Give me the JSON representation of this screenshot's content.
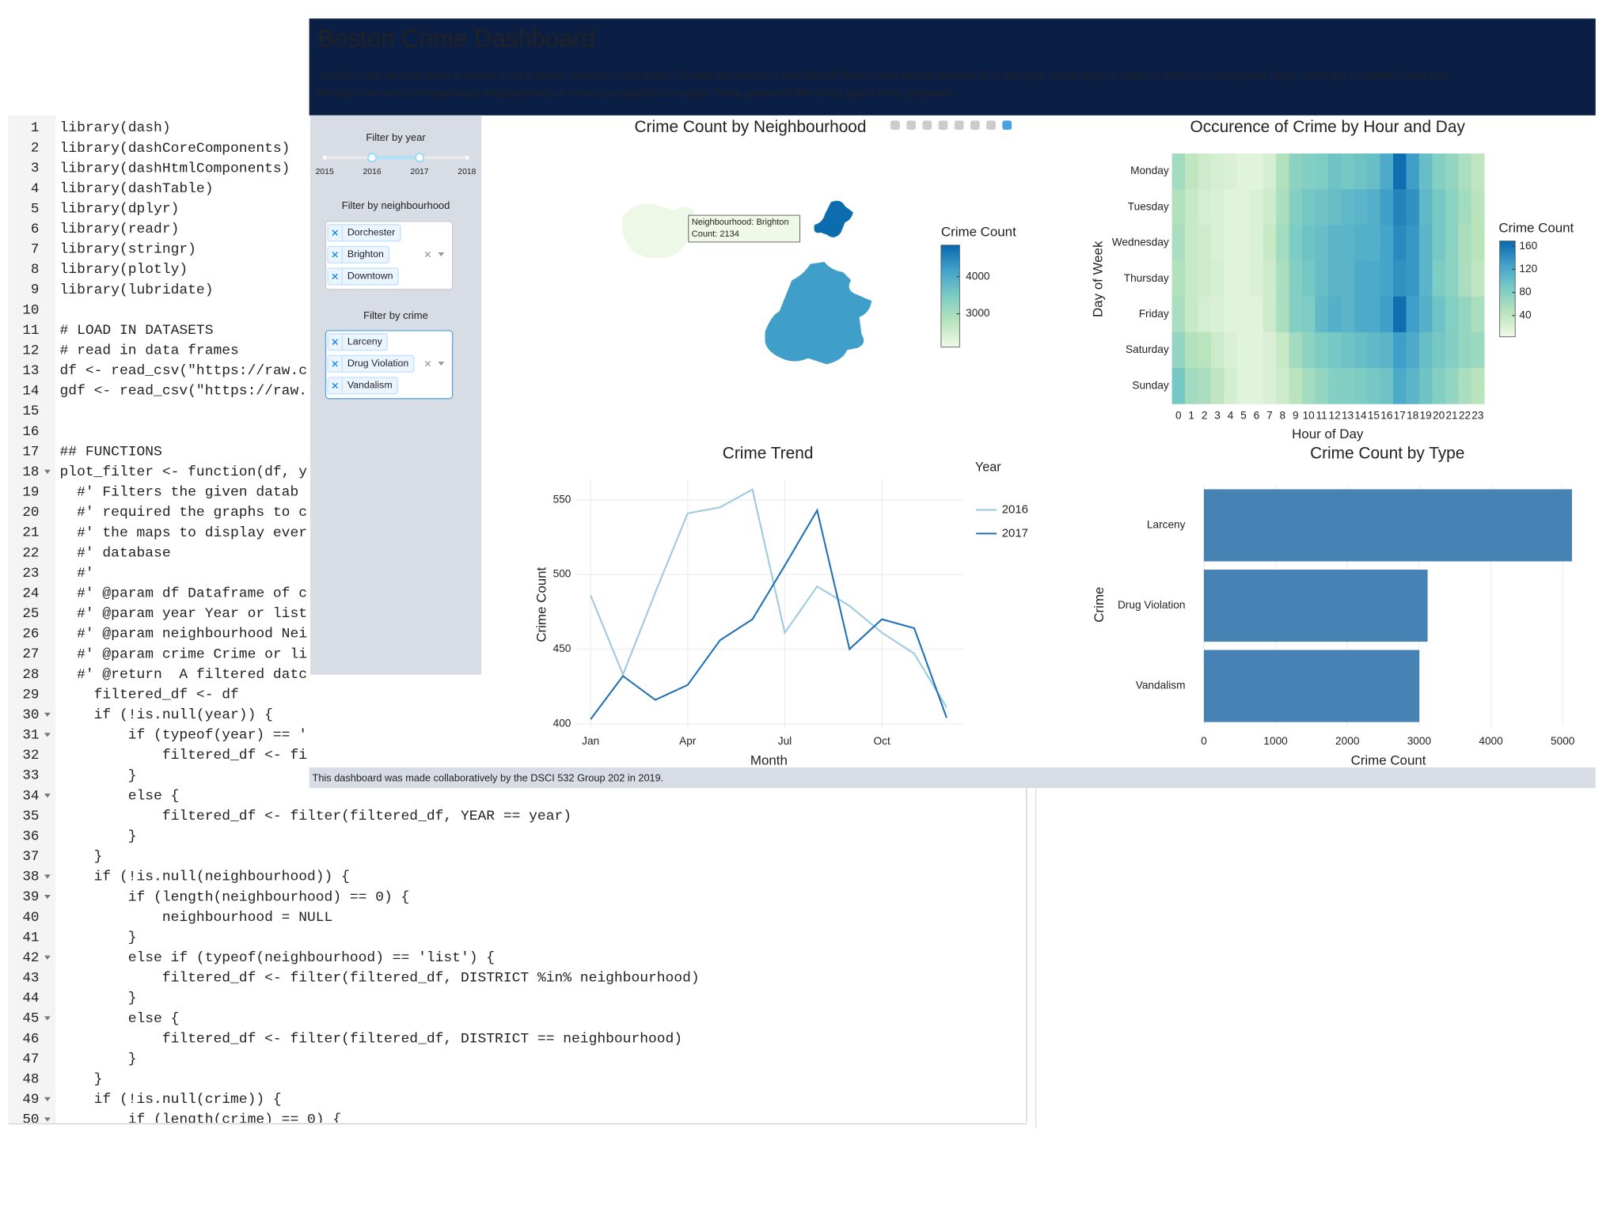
{
  "editor": {
    "lines": [
      {
        "n": 1,
        "code": "library(dash)"
      },
      {
        "n": 2,
        "code": "library(dashCoreComponents)"
      },
      {
        "n": 3,
        "code": "library(dashHtmlComponents)"
      },
      {
        "n": 4,
        "code": "library(dashTable)"
      },
      {
        "n": 5,
        "code": "library(dplyr)"
      },
      {
        "n": 6,
        "code": "library(readr)"
      },
      {
        "n": 7,
        "code": "library(stringr)"
      },
      {
        "n": 8,
        "code": "library(plotly)"
      },
      {
        "n": 9,
        "code": "library(lubridate)"
      },
      {
        "n": 10
      },
      {
        "n": 11,
        "code": "# LOAD IN DATASETS"
      },
      {
        "n": 12,
        "code": "# read in data frames"
      },
      {
        "n": 13,
        "code": "df <- read_csv(\"https://raw.c"
      },
      {
        "n": 14,
        "code": "gdf <- read_csv(\"https://raw."
      },
      {
        "n": 15
      },
      {
        "n": 16
      },
      {
        "n": 17,
        "code": "## FUNCTIONS"
      },
      {
        "n": 18,
        "code": "plot_filter <- function(df, y",
        "fold": true
      },
      {
        "n": 19,
        "code": "  #' Filters the given datab"
      },
      {
        "n": 20,
        "code": "  #' required the graphs to c"
      },
      {
        "n": 21,
        "code": "  #' the maps to display ever"
      },
      {
        "n": 22,
        "code": "  #' database"
      },
      {
        "n": 23,
        "code": "  #'"
      },
      {
        "n": 24,
        "code": "  #' @param df Dataframe of c"
      },
      {
        "n": 25,
        "code": "  #' @param year Year or list"
      },
      {
        "n": 26,
        "code": "  #' @param neighbourhood Nei"
      },
      {
        "n": 27,
        "code": "  #' @param crime Crime or li"
      },
      {
        "n": 28,
        "code": "  #' @return  A filtered datc"
      },
      {
        "n": 29,
        "code": "    filtered_df <- df"
      },
      {
        "n": 30,
        "code": "    if (!is.null(year)) {",
        "fold": true
      },
      {
        "n": 31,
        "code": "        if (typeof(year) == '",
        "fold": true
      },
      {
        "n": 32,
        "code": "            filtered_df <- fi"
      },
      {
        "n": 33,
        "code": "        }"
      },
      {
        "n": 34,
        "code": "        else {",
        "fold": true
      },
      {
        "n": 35,
        "code": "            filtered_df <- filter(filtered_df, YEAR == year)"
      },
      {
        "n": 36,
        "code": "        }"
      },
      {
        "n": 37,
        "code": "    }"
      },
      {
        "n": 38,
        "code": "    if (!is.null(neighbourhood)) {",
        "fold": true
      },
      {
        "n": 39,
        "code": "        if (length(neighbourhood) == 0) {",
        "fold": true
      },
      {
        "n": 40,
        "code": "            neighbourhood = NULL"
      },
      {
        "n": 41,
        "code": "        }"
      },
      {
        "n": 42,
        "code": "        else if (typeof(neighbourhood) == 'list') {",
        "fold": true
      },
      {
        "n": 43,
        "code": "            filtered_df <- filter(filtered_df, DISTRICT %in% neighbourhood)"
      },
      {
        "n": 44,
        "code": "        }"
      },
      {
        "n": 45,
        "code": "        else {",
        "fold": true
      },
      {
        "n": 46,
        "code": "            filtered_df <- filter(filtered_df, DISTRICT == neighbourhood)"
      },
      {
        "n": 47,
        "code": "        }"
      },
      {
        "n": 48,
        "code": "    }"
      },
      {
        "n": 49,
        "code": "    if (!is.null(crime)) {",
        "fold": true
      },
      {
        "n": 50,
        "code": "        if (length(crime) == 0) {",
        "fold": true
      }
    ]
  },
  "dashboard": {
    "title": "Boston Crime Dashboard",
    "description": [
      "This Dash app will allow users to explore crime in Boston across time and space. The data set consists of over 300,000 Boston crime records between 2015 and 2018. Simply drag the sliders to select your desired year range. Select one or multiple values from",
      "the drop down menus to select which neighbourhoods or crimes you would like to explore. These options will filter all the graphs in the dashboard."
    ],
    "year_filter": {
      "label": "Filter by year",
      "marks": [
        2015,
        2016,
        2017,
        2018
      ],
      "value": [
        2016,
        2017
      ]
    },
    "neighbourhood_filter": {
      "label": "Filter by neighbourhood",
      "selected": [
        "Dorchester",
        "Brighton",
        "Downtown"
      ]
    },
    "crime_filter": {
      "label": "Filter by crime",
      "selected": [
        "Larceny",
        "Drug Violation",
        "Vandalism"
      ]
    },
    "footer": "This dashboard was made collaboratively by the DSCI 532 Group 202 in 2019."
  },
  "chart_data": [
    {
      "type": "choropleth",
      "title": "Crime Count by Neighbourhood",
      "regions": [
        {
          "name": "Brighton",
          "value": 2134
        },
        {
          "name": "Dorchester",
          "value": 4200
        },
        {
          "name": "Downtown",
          "value": 4800
        }
      ],
      "tooltip": [
        "Neighbourhood: Brighton",
        "Count: 2134"
      ],
      "colorbar_title": "Crime Count",
      "clim": [
        2100,
        4850
      ],
      "cticks": [
        3000,
        4000
      ]
    },
    {
      "type": "heatmap",
      "title": "Occurence of Crime by Hour and Day",
      "x": [
        0,
        1,
        2,
        3,
        4,
        5,
        6,
        7,
        8,
        9,
        10,
        11,
        12,
        13,
        14,
        15,
        16,
        17,
        18,
        19,
        20,
        21,
        22,
        23
      ],
      "y": [
        "Monday",
        "Tuesday",
        "Wednesday",
        "Thursday",
        "Friday",
        "Saturday",
        "Sunday"
      ],
      "z": [
        [
          60,
          40,
          30,
          25,
          20,
          15,
          15,
          25,
          50,
          75,
          80,
          85,
          95,
          90,
          95,
          100,
          120,
          165,
          130,
          100,
          80,
          70,
          55,
          40
        ],
        [
          50,
          35,
          25,
          20,
          15,
          15,
          20,
          30,
          55,
          80,
          90,
          95,
          100,
          105,
          110,
          115,
          130,
          150,
          140,
          105,
          90,
          75,
          60,
          45
        ],
        [
          55,
          35,
          30,
          20,
          15,
          15,
          20,
          35,
          60,
          85,
          95,
          100,
          110,
          110,
          115,
          115,
          125,
          145,
          135,
          110,
          90,
          75,
          55,
          45
        ],
        [
          50,
          35,
          30,
          25,
          15,
          15,
          20,
          30,
          55,
          80,
          90,
          100,
          110,
          110,
          120,
          120,
          125,
          140,
          135,
          110,
          85,
          75,
          55,
          40
        ],
        [
          55,
          35,
          25,
          20,
          15,
          15,
          15,
          30,
          55,
          80,
          85,
          105,
          115,
          110,
          120,
          120,
          130,
          165,
          130,
          115,
          95,
          80,
          70,
          55
        ],
        [
          70,
          50,
          45,
          30,
          20,
          15,
          15,
          20,
          35,
          60,
          75,
          85,
          90,
          95,
          100,
          105,
          110,
          130,
          120,
          100,
          90,
          80,
          70,
          65
        ],
        [
          90,
          60,
          55,
          40,
          25,
          15,
          15,
          20,
          30,
          45,
          60,
          70,
          80,
          80,
          85,
          90,
          95,
          120,
          110,
          95,
          80,
          70,
          55,
          45
        ]
      ],
      "x_label": "Hour of Day",
      "y_label": "Day of Week",
      "colorbar_title": "Crime Count",
      "clim": [
        3,
        169
      ],
      "cticks": [
        40,
        80,
        120,
        160
      ]
    },
    {
      "type": "line",
      "title": "Crime Trend",
      "categories": [
        "Jan",
        null,
        null,
        "Apr",
        null,
        null,
        "Jul",
        null,
        null,
        "Oct",
        null,
        null
      ],
      "series": [
        {
          "name": "2016",
          "color": "#9ecae1",
          "values": [
            486,
            433,
            488,
            541,
            545,
            557,
            461,
            492,
            479,
            461,
            447,
            411
          ]
        },
        {
          "name": "2017",
          "color": "#2171b5",
          "values": [
            403,
            432,
            416,
            426,
            456,
            470,
            506,
            543,
            450,
            470,
            464,
            404
          ]
        }
      ],
      "ylim": [
        397,
        564
      ],
      "yticks": [
        400,
        450,
        500,
        550
      ],
      "grid": true,
      "x_label": "Month",
      "y_label": "Crime Count",
      "legend_title": "Year"
    },
    {
      "type": "hbar",
      "title": "Crime Count by Type",
      "categories": [
        "Larceny",
        "Drug Violation",
        "Vandalism"
      ],
      "values": [
        5130,
        3118,
        3003
      ],
      "color": "#4682b4",
      "xlim": [
        0,
        5200
      ],
      "xticks": [
        0,
        1000,
        2000,
        3000,
        4000,
        5000
      ],
      "grid": true,
      "x_label": "Crime Count",
      "y_label": "Crime"
    }
  ]
}
